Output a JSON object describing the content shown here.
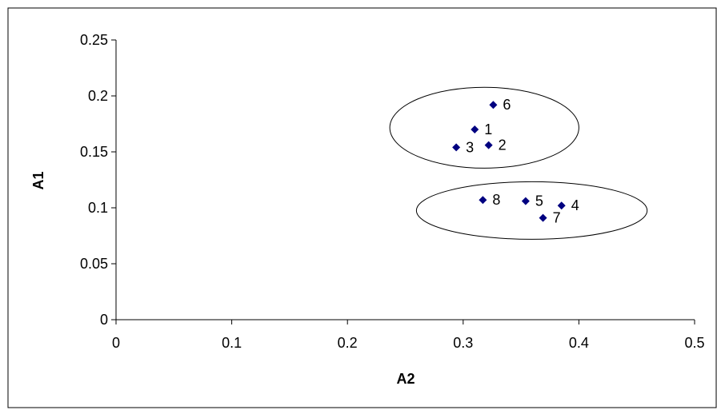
{
  "chart_data": {
    "type": "scatter",
    "title": "",
    "xlabel": "A2",
    "ylabel": "A1",
    "xlim": [
      0,
      0.5
    ],
    "ylim": [
      0,
      0.25
    ],
    "x_ticks": [
      "0",
      "0.1",
      "0.2",
      "0.3",
      "0.4",
      "0.5"
    ],
    "y_ticks": [
      "0",
      "0.05",
      "0.1",
      "0.15",
      "0.2",
      "0.25"
    ],
    "grid": false,
    "legend": "none",
    "marker": "diamond",
    "marker_color": "#000080",
    "points": [
      {
        "label": "1",
        "x": 0.31,
        "y": 0.17
      },
      {
        "label": "2",
        "x": 0.322,
        "y": 0.156
      },
      {
        "label": "3",
        "x": 0.294,
        "y": 0.154
      },
      {
        "label": "4",
        "x": 0.385,
        "y": 0.102
      },
      {
        "label": "5",
        "x": 0.354,
        "y": 0.106
      },
      {
        "label": "6",
        "x": 0.326,
        "y": 0.192
      },
      {
        "label": "7",
        "x": 0.369,
        "y": 0.091
      },
      {
        "label": "8",
        "x": 0.317,
        "y": 0.107
      }
    ],
    "clusters": [
      {
        "members": [
          "1",
          "2",
          "3",
          "6"
        ]
      },
      {
        "members": [
          "4",
          "5",
          "7",
          "8"
        ]
      }
    ]
  }
}
